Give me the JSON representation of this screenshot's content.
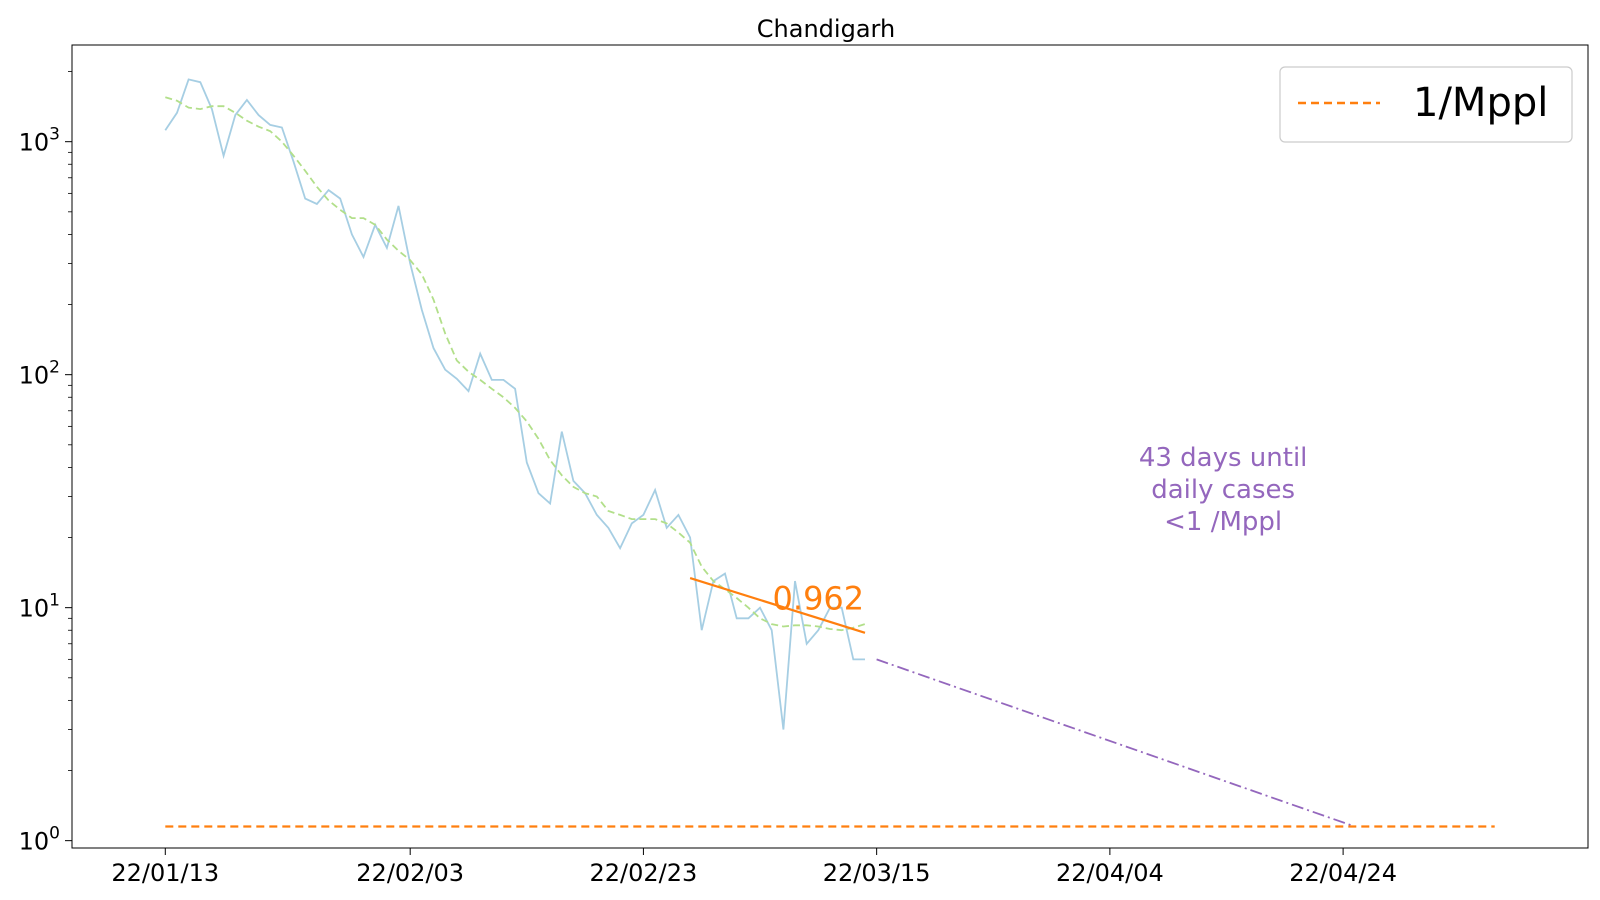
{
  "chart_data": {
    "type": "line",
    "title": "Chandigarh",
    "xlabel": "",
    "ylabel": "",
    "y_scale": "log",
    "ylim": [
      0.93,
      2600
    ],
    "xlim": [
      "2022-01-05",
      "2022-05-15"
    ],
    "x_ticks": [
      "22/01/13",
      "22/02/03",
      "22/02/23",
      "22/03/15",
      "22/04/04",
      "22/04/24"
    ],
    "y_ticks": [
      {
        "value": 1,
        "base": "10",
        "exp": "0"
      },
      {
        "value": 10,
        "base": "10",
        "exp": "1"
      },
      {
        "value": 100,
        "base": "10",
        "exp": "2"
      },
      {
        "value": 1000,
        "base": "10",
        "exp": "3"
      }
    ],
    "series": [
      {
        "role": "daily",
        "color": "#a6cee3",
        "style": "solid",
        "x": [
          "2022-01-13",
          "2022-01-14",
          "2022-01-15",
          "2022-01-16",
          "2022-01-17",
          "2022-01-18",
          "2022-01-19",
          "2022-01-20",
          "2022-01-21",
          "2022-01-22",
          "2022-01-23",
          "2022-01-24",
          "2022-01-25",
          "2022-01-26",
          "2022-01-27",
          "2022-01-28",
          "2022-01-29",
          "2022-01-30",
          "2022-01-31",
          "2022-02-01",
          "2022-02-02",
          "2022-02-03",
          "2022-02-04",
          "2022-02-05",
          "2022-02-06",
          "2022-02-07",
          "2022-02-08",
          "2022-02-09",
          "2022-02-10",
          "2022-02-11",
          "2022-02-12",
          "2022-02-13",
          "2022-02-14",
          "2022-02-15",
          "2022-02-16",
          "2022-02-17",
          "2022-02-18",
          "2022-02-19",
          "2022-02-20",
          "2022-02-21",
          "2022-02-22",
          "2022-02-23",
          "2022-02-24",
          "2022-02-25",
          "2022-02-26",
          "2022-02-27",
          "2022-02-28",
          "2022-03-01",
          "2022-03-02",
          "2022-03-03",
          "2022-03-04",
          "2022-03-05",
          "2022-03-06",
          "2022-03-07",
          "2022-03-08",
          "2022-03-09",
          "2022-03-10",
          "2022-03-11",
          "2022-03-12",
          "2022-03-13",
          "2022-03-14"
        ],
        "y": [
          1120,
          1330,
          1850,
          1800,
          1380,
          870,
          1300,
          1510,
          1300,
          1180,
          1150,
          820,
          570,
          540,
          620,
          570,
          400,
          320,
          440,
          350,
          530,
          300,
          190,
          130,
          105,
          96,
          85,
          123,
          95,
          95,
          87,
          42,
          31,
          28,
          57,
          35,
          31,
          25,
          22,
          18,
          23,
          25,
          32,
          22,
          25,
          20,
          8,
          13,
          14,
          9,
          9,
          10,
          8,
          3,
          13,
          7,
          8,
          10,
          10,
          6,
          6
        ]
      },
      {
        "role": "7-day average",
        "color": "#b2df8a",
        "style": "dashed",
        "x": [
          "2022-01-13",
          "2022-01-14",
          "2022-01-15",
          "2022-01-16",
          "2022-01-17",
          "2022-01-18",
          "2022-01-19",
          "2022-01-20",
          "2022-01-21",
          "2022-01-22",
          "2022-01-23",
          "2022-01-24",
          "2022-01-25",
          "2022-01-26",
          "2022-01-27",
          "2022-01-28",
          "2022-01-29",
          "2022-01-30",
          "2022-01-31",
          "2022-02-01",
          "2022-02-02",
          "2022-02-03",
          "2022-02-04",
          "2022-02-05",
          "2022-02-06",
          "2022-02-07",
          "2022-02-08",
          "2022-02-09",
          "2022-02-10",
          "2022-02-11",
          "2022-02-12",
          "2022-02-13",
          "2022-02-14",
          "2022-02-15",
          "2022-02-16",
          "2022-02-17",
          "2022-02-18",
          "2022-02-19",
          "2022-02-20",
          "2022-02-21",
          "2022-02-22",
          "2022-02-23",
          "2022-02-24",
          "2022-02-25",
          "2022-02-26",
          "2022-02-27",
          "2022-02-28",
          "2022-03-01",
          "2022-03-02",
          "2022-03-03",
          "2022-03-04",
          "2022-03-05",
          "2022-03-06",
          "2022-03-07",
          "2022-03-08",
          "2022-03-09",
          "2022-03-10",
          "2022-03-11",
          "2022-03-12",
          "2022-03-13",
          "2022-03-14"
        ],
        "y": [
          1550,
          1500,
          1400,
          1380,
          1420,
          1420,
          1330,
          1230,
          1160,
          1110,
          1000,
          870,
          750,
          640,
          560,
          510,
          470,
          470,
          440,
          380,
          340,
          310,
          270,
          210,
          150,
          115,
          103,
          95,
          87,
          80,
          72,
          63,
          53,
          43,
          37,
          33,
          31,
          30,
          26,
          25,
          24,
          24,
          24,
          23,
          21,
          19,
          15,
          13,
          12,
          11,
          10,
          9,
          8.5,
          8.3,
          8.4,
          8.4,
          8.3,
          8.1,
          8,
          8.2,
          8.5
        ]
      },
      {
        "role": "fit",
        "color": "#ff7f0e",
        "style": "solid",
        "x": [
          "2022-02-27",
          "2022-03-14"
        ],
        "y": [
          13.4,
          7.8
        ]
      },
      {
        "role": "projection",
        "color": "#9467bd",
        "style": "dashdot",
        "x": [
          "2022-03-15",
          "2022-04-25"
        ],
        "y": [
          6,
          1.15
        ]
      },
      {
        "name": "1/Mppl",
        "color": "#ff7f0e",
        "style": "dashed",
        "x": [
          "2022-01-13",
          "2022-05-07"
        ],
        "y": [
          1.15,
          1.15
        ]
      }
    ],
    "annotations": [
      {
        "text": "0.962",
        "x": "2022-03-10",
        "y": 10,
        "color": "#ff7f0e"
      },
      {
        "lines": [
          "43 days until",
          "daily cases",
          "<1 /Mppl"
        ],
        "x": "2022-04-18",
        "y": 30,
        "color": "#9467bd"
      }
    ],
    "legend": {
      "placement": "top-right",
      "entries": [
        "1/Mppl"
      ]
    },
    "grid": false
  }
}
